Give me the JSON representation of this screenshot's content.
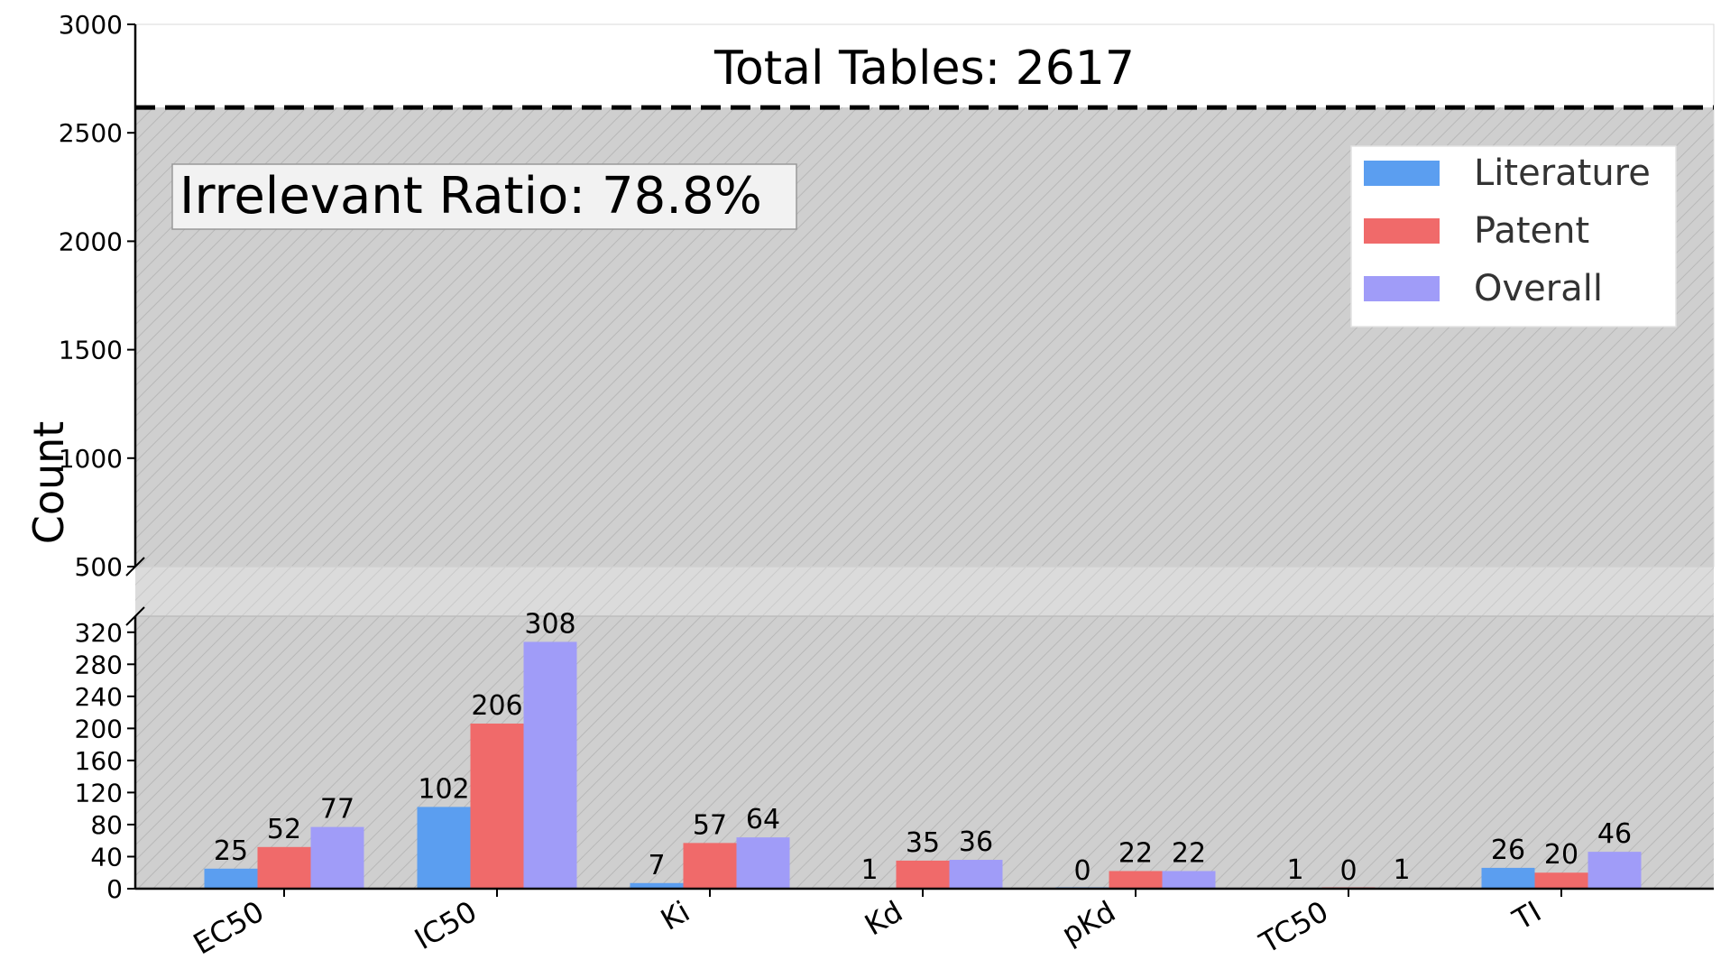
{
  "chart_data": {
    "type": "bar",
    "categories": [
      "EC50",
      "IC50",
      "Ki",
      "Kd",
      "pKd",
      "TC50",
      "TI"
    ],
    "series": [
      {
        "name": "Literature",
        "values": [
          25,
          102,
          7,
          1,
          0,
          1,
          26
        ],
        "color": "#5b9ef0"
      },
      {
        "name": "Patent",
        "values": [
          52,
          206,
          57,
          35,
          22,
          0,
          20
        ],
        "color": "#f06a6a"
      },
      {
        "name": "Overall",
        "values": [
          77,
          308,
          64,
          36,
          22,
          1,
          46
        ],
        "color": "#a09cf8"
      }
    ],
    "ylabel": "Count",
    "xlabel": "",
    "y_axis_broken": true,
    "y_lower_range": [
      0,
      340
    ],
    "y_lower_ticks": [
      0,
      40,
      80,
      120,
      160,
      200,
      240,
      280,
      320
    ],
    "y_upper_range": [
      500,
      3000
    ],
    "y_upper_ticks": [
      500,
      1000,
      1500,
      2000,
      2500,
      3000
    ],
    "total_tables_line": 2617,
    "total_tables_label": "Total Tables: 2617",
    "irrelevant_ratio_label": "Irrelevant Ratio: 78.8%",
    "legend_placement": "top-right",
    "background_hatch": true,
    "grid": false
  }
}
